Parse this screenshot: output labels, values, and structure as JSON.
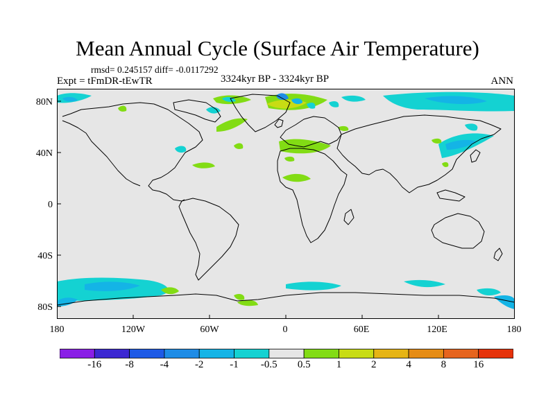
{
  "title": "Mean Annual Cycle (Surface Air Temperature)",
  "stats": "rmsd= 0.245157 diff= -0.0117292",
  "experiment": "Expt = tFmDR-tEwTR",
  "period": "3324kyr BP - 3324kyr BP",
  "season": "ANN",
  "y_labels": [
    "80N",
    "40N",
    "0",
    "40S",
    "80S"
  ],
  "x_labels": [
    "180",
    "120W",
    "60W",
    "0",
    "60E",
    "120E",
    "180"
  ],
  "colorbar": {
    "labels": [
      "-16",
      "-8",
      "-4",
      "-2",
      "-1",
      "-0.5",
      "0.5",
      "1",
      "2",
      "4",
      "8",
      "16"
    ],
    "colors": [
      "#8a1ee6",
      "#3c28d2",
      "#1e5ae6",
      "#1e8ce6",
      "#14b4e6",
      "#14d2d2",
      "#e6e6e6",
      "#82dc14",
      "#c8dc14",
      "#e6b414",
      "#e68c14",
      "#e6641e",
      "#e6320a"
    ]
  },
  "map_colors": {
    "background": "#e6e6e6",
    "cyan": "#14d2d2",
    "light_blue": "#14b4e6",
    "blue": "#1e8ce6",
    "green": "#82dc14",
    "yellow_green": "#c8dc14"
  }
}
